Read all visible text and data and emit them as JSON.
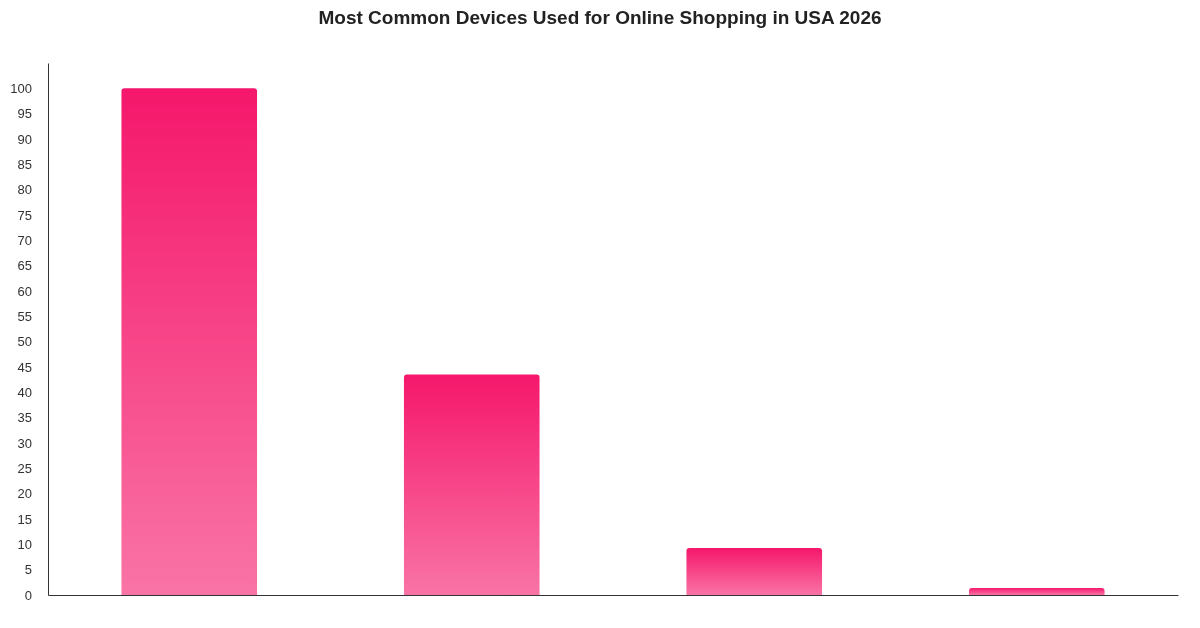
{
  "chart_data": {
    "type": "bar",
    "title": "Most Common Devices Used for Online Shopping in USA 2026",
    "categories": [
      null,
      null,
      null,
      null
    ],
    "values": [
      100,
      43.5,
      9.3,
      1.4
    ],
    "color": "#f5176b",
    "ylim": [
      0,
      105
    ],
    "yticks": [
      0,
      5,
      10,
      15,
      20,
      25,
      30,
      35,
      40,
      45,
      50,
      55,
      60,
      65,
      70,
      75,
      80,
      85,
      90,
      95,
      100
    ]
  }
}
